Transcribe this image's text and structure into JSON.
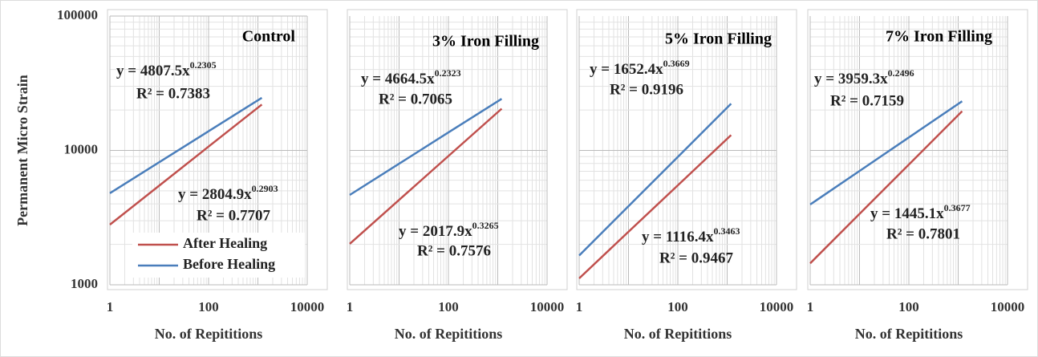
{
  "chart_data": [
    {
      "type": "line",
      "title": "Control",
      "x_label": "No. of Repititions",
      "y_label": "Permanent Micro Strain",
      "log_x": true,
      "log_y": true,
      "grid": true,
      "legend": "lower left",
      "xlim": [
        1,
        10000
      ],
      "ylim": [
        1000,
        100000
      ],
      "xticks": [
        1,
        100,
        10000
      ],
      "yticks": [
        1000,
        10000,
        100000
      ],
      "x": [
        1,
        10,
        100,
        1200
      ],
      "series": [
        {
          "name": "After Healing",
          "color": "#c0504d",
          "values": [
            2805,
            5472,
            10675,
            21960
          ]
        },
        {
          "name": "Before Healing",
          "color": "#4a7ebb",
          "values": [
            4808,
            8174,
            13898,
            24640
          ]
        }
      ],
      "annotations": [
        {
          "equation": "y = 4807.5x",
          "exponent": "0.2305",
          "r_squared": "R² = 0.7383"
        },
        {
          "equation": "y = 2804.9x",
          "exponent": "0.2903",
          "r_squared": "R² = 0.7707"
        }
      ]
    },
    {
      "type": "line",
      "title": "3% Iron Filling",
      "x_label": "No. of Repititions",
      "log_x": true,
      "log_y": true,
      "grid": true,
      "xlim": [
        1,
        10000
      ],
      "ylim": [
        1000,
        100000
      ],
      "xticks": [
        1,
        100,
        10000
      ],
      "x": [
        1,
        10,
        100,
        1200
      ],
      "series": [
        {
          "color": "#c0504d",
          "values": [
            2018,
            4280,
            9077,
            20430
          ]
        },
        {
          "color": "#4a7ebb",
          "values": [
            4665,
            7965,
            13600,
            24210
          ]
        }
      ],
      "annotations": [
        {
          "equation": "y = 4664.5x",
          "exponent": "0.2323",
          "r_squared": "R² = 0.7065"
        },
        {
          "equation": "y = 2017.9x",
          "exponent": "0.3265",
          "r_squared": "R² = 0.7576"
        }
      ]
    },
    {
      "type": "line",
      "title": "5% Iron Filling",
      "x_label": "No. of Repititions",
      "log_x": true,
      "log_y": true,
      "grid": true,
      "xlim": [
        1,
        10000
      ],
      "ylim": [
        1000,
        100000
      ],
      "xticks": [
        1,
        100,
        10000
      ],
      "x": [
        1,
        10,
        100,
        1200
      ],
      "series": [
        {
          "color": "#c0504d",
          "values": [
            1116,
            2480,
            5502,
            13010
          ]
        },
        {
          "color": "#4a7ebb",
          "values": [
            1652,
            3845,
            8950,
            22270
          ]
        }
      ],
      "annotations": [
        {
          "equation": "y = 1652.4x",
          "exponent": "0.3669",
          "r_squared": "R² = 0.9196"
        },
        {
          "equation": "y = 1116.4x",
          "exponent": "0.3463",
          "r_squared": "R² = 0.9467"
        }
      ]
    },
    {
      "type": "line",
      "title": "7% Iron Filling",
      "x_label": "No. of Repititions",
      "log_x": true,
      "log_y": true,
      "grid": true,
      "xlim": [
        1,
        10000
      ],
      "ylim": [
        1000,
        100000
      ],
      "xticks": [
        1,
        100,
        10000
      ],
      "x": [
        1,
        10,
        100,
        1200
      ],
      "series": [
        {
          "color": "#c0504d",
          "values": [
            1445,
            3369,
            7856,
            19590
          ]
        },
        {
          "color": "#4a7ebb",
          "values": [
            3959,
            7036,
            12498,
            23240
          ]
        }
      ],
      "annotations": [
        {
          "equation": "y = 3959.3x",
          "exponent": "0.2496",
          "r_squared": "R² = 0.7159"
        },
        {
          "equation": "y = 1445.1x",
          "exponent": "0.3677",
          "r_squared": "R² = 0.7801"
        }
      ]
    }
  ]
}
